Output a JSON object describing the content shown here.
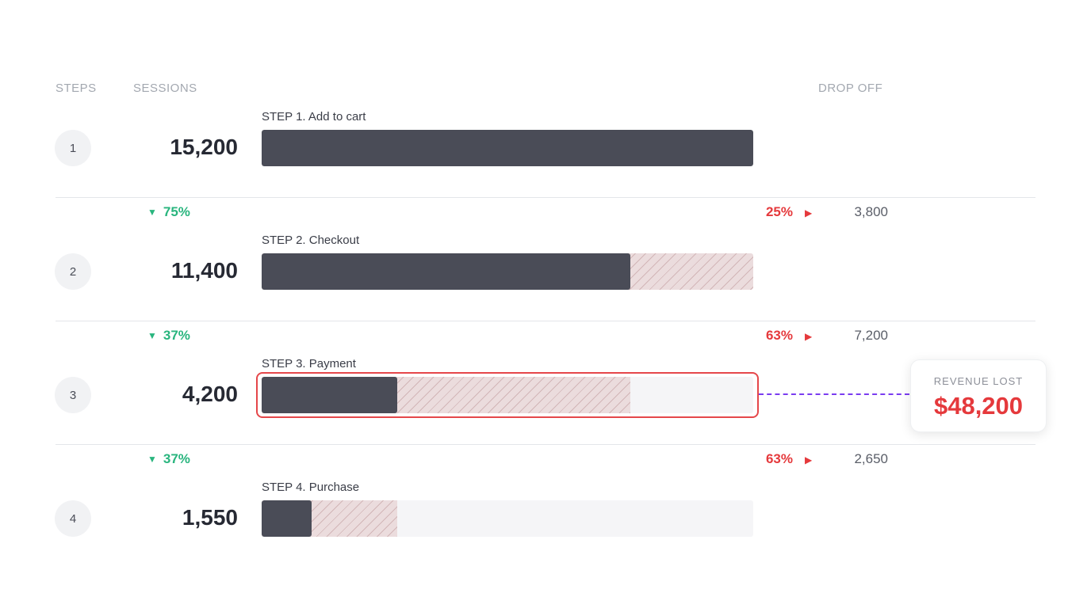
{
  "headers": {
    "steps": "STEPS",
    "sessions": "SESSIONS",
    "drop_off": "DROP OFF"
  },
  "chart_data": {
    "type": "bar",
    "title": "",
    "categories": [
      "STEP 1. Add to cart",
      "STEP 2. Checkout",
      "STEP 3. Payment",
      "STEP 4. Purchase"
    ],
    "values": [
      15200,
      11400,
      4200,
      1550
    ],
    "xlim": [
      0,
      15200
    ]
  },
  "steps": [
    {
      "number": "1",
      "label": "STEP 1. Add to cart",
      "sessions": "15,200",
      "value": 15200,
      "previous": null,
      "highlighted": false
    },
    {
      "number": "2",
      "label": "STEP 2. Checkout",
      "sessions": "11,400",
      "value": 11400,
      "previous": 15200,
      "highlighted": false
    },
    {
      "number": "3",
      "label": "STEP 3. Payment",
      "sessions": "4,200",
      "value": 4200,
      "previous": 11400,
      "highlighted": true
    },
    {
      "number": "4",
      "label": "STEP 4. Purchase",
      "sessions": "1,550",
      "value": 1550,
      "previous": 4200,
      "highlighted": false
    }
  ],
  "transitions": [
    {
      "conversion": "75%",
      "drop_pct": "25%",
      "drop_count": "3,800"
    },
    {
      "conversion": "37%",
      "drop_pct": "63%",
      "drop_count": "7,200"
    },
    {
      "conversion": "37%",
      "drop_pct": "63%",
      "drop_count": "2,650"
    }
  ],
  "revenue_lost": {
    "label": "REVENUE LOST",
    "value": "$48,200"
  },
  "colors": {
    "fill": "#4a4c57",
    "lost": "#ebdcdd",
    "conversion": "#29b57e",
    "drop": "#e5393c",
    "highlight": "#e5474a",
    "connector": "#7a3cf0"
  }
}
